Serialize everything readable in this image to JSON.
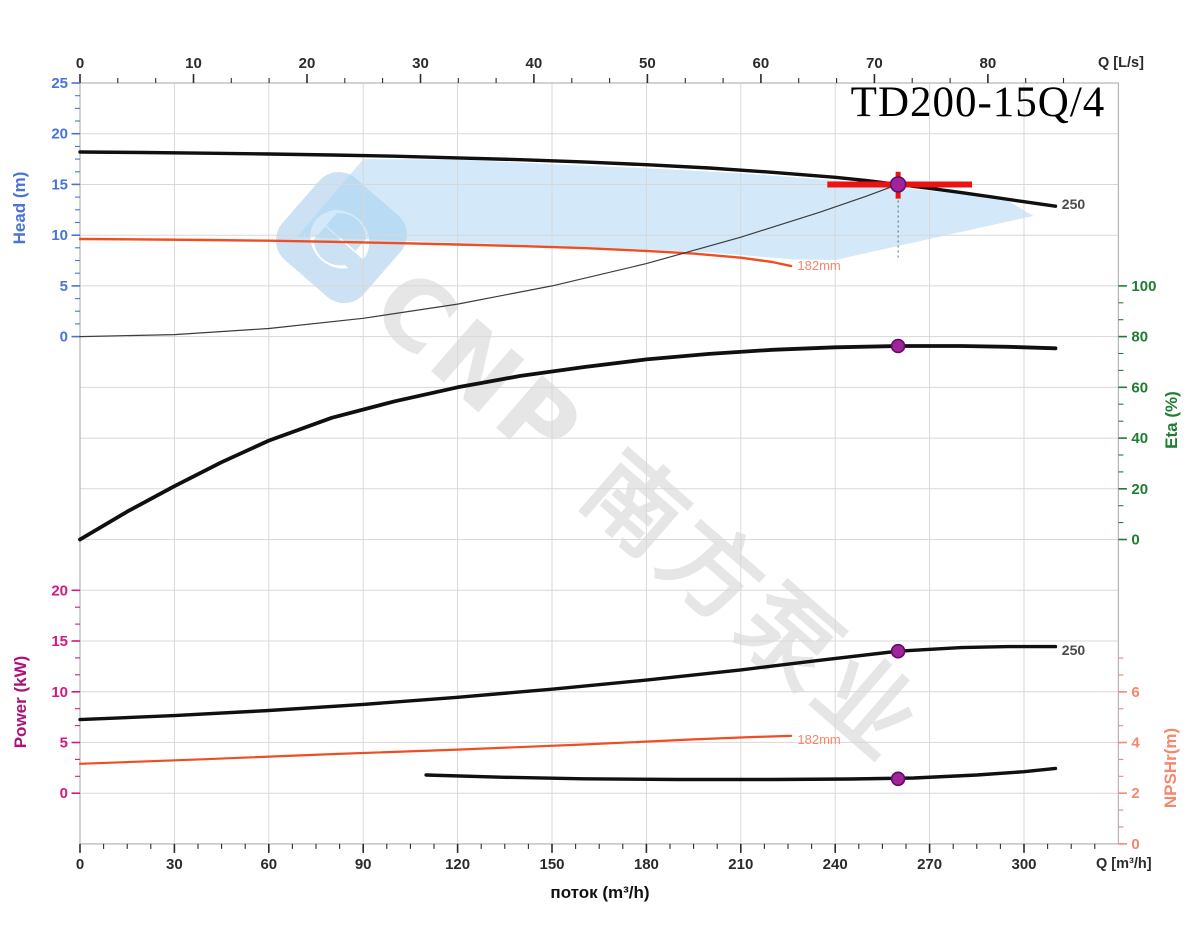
{
  "title": "TD200-15Q/4",
  "watermark": {
    "logo": "℮",
    "text": "CNP 南方泵业"
  },
  "labels": {
    "q_ls": "Q [L/s]",
    "q_m3h": "Q [m³/h]",
    "flow_xlabel": "поток (m³/h)",
    "head_axis": "Head (m)",
    "power_axis": "Power (kW)",
    "eta_axis": "Eta (%)",
    "npshr_axis": "NPSHr(m)"
  },
  "colors": {
    "head_axis": "#4a72d9",
    "eta_axis": "#1e7d32",
    "power_axis": "#d6187f",
    "npshr_axis": "#f4876c",
    "flow_axis": "#2b2b2b",
    "curve_black": "#101010",
    "curve_orange": "#ef4e23",
    "system_curve": "#3c3c3c",
    "grid": "#d8d8d8",
    "spine": "#b5b5b5",
    "region_fill": "rgba(168,212,244,0.5)",
    "duty_marker_red": "#ee1111",
    "dot_purple": "#a2249a",
    "dot_edge": "#5e0f62",
    "label_gray": "#4a4a4a"
  },
  "chart_data": {
    "type": "line",
    "title": "TD200-15Q/4",
    "grid": "on",
    "axes": {
      "flow_m3h": {
        "title": "Q [m³/h]",
        "range": [
          0,
          330
        ],
        "majors": [
          0,
          30,
          60,
          90,
          120,
          150,
          180,
          210,
          240,
          270,
          300
        ],
        "minor_div": 4,
        "color": "#2b2b2b",
        "side": "bottom"
      },
      "flow_ls": {
        "title": "Q [L/s]",
        "range": [
          0,
          91.5
        ],
        "majors": [
          0,
          10,
          20,
          30,
          40,
          50,
          60,
          70,
          80
        ],
        "minor_div": 3,
        "color": "#2b2b2b",
        "side": "top"
      },
      "head": {
        "title": "Head (m)",
        "range": [
          0,
          25
        ],
        "majors": [
          0,
          5,
          10,
          15,
          20,
          25
        ],
        "minor_div": 4,
        "color": "#4a72d9",
        "side": "left"
      },
      "eta": {
        "title": "Eta (%)",
        "range": [
          0,
          100
        ],
        "majors": [
          0,
          20,
          40,
          60,
          80,
          100
        ],
        "minor_div": 3,
        "color": "#1e7d32",
        "side": "right"
      },
      "power": {
        "title": "Power (kW)",
        "range": [
          0,
          20
        ],
        "majors": [
          0,
          5,
          10,
          15,
          20
        ],
        "minor_div": 3,
        "color": "#d6187f",
        "side": "left"
      },
      "npshr": {
        "title": "NPSHr(m)",
        "range": [
          0,
          8
        ],
        "majors": [
          0,
          2,
          4,
          6
        ],
        "minor_div": 3,
        "color": "#f4876c",
        "side": "right"
      }
    },
    "series": [
      {
        "name": "head-250",
        "xaxis": "flow_m3h",
        "yaxis": "head",
        "color": "#101010",
        "width": 3.4,
        "points": [
          [
            0,
            18.2
          ],
          [
            20,
            18.15
          ],
          [
            40,
            18.08
          ],
          [
            60,
            18.0
          ],
          [
            80,
            17.9
          ],
          [
            100,
            17.78
          ],
          [
            120,
            17.62
          ],
          [
            140,
            17.44
          ],
          [
            160,
            17.22
          ],
          [
            180,
            16.95
          ],
          [
            200,
            16.62
          ],
          [
            220,
            16.2
          ],
          [
            240,
            15.7
          ],
          [
            250,
            15.38
          ],
          [
            260,
            15.0
          ],
          [
            270,
            14.62
          ],
          [
            280,
            14.2
          ],
          [
            290,
            13.75
          ],
          [
            300,
            13.3
          ],
          [
            310,
            12.85
          ]
        ]
      },
      {
        "name": "head-182mm",
        "xaxis": "flow_m3h",
        "yaxis": "head",
        "color": "#ef4e23",
        "width": 2.4,
        "points": [
          [
            0,
            9.62
          ],
          [
            20,
            9.58
          ],
          [
            40,
            9.52
          ],
          [
            60,
            9.45
          ],
          [
            80,
            9.35
          ],
          [
            100,
            9.22
          ],
          [
            120,
            9.08
          ],
          [
            140,
            8.92
          ],
          [
            160,
            8.72
          ],
          [
            180,
            8.45
          ],
          [
            195,
            8.18
          ],
          [
            210,
            7.78
          ],
          [
            220,
            7.35
          ],
          [
            226,
            6.95
          ]
        ]
      },
      {
        "name": "system-curve",
        "xaxis": "flow_m3h",
        "yaxis": "head",
        "color": "#3c3c3c",
        "width": 1.2,
        "points": [
          [
            0,
            0
          ],
          [
            30,
            0.2
          ],
          [
            60,
            0.8
          ],
          [
            90,
            1.8
          ],
          [
            120,
            3.2
          ],
          [
            150,
            5.0
          ],
          [
            180,
            7.2
          ],
          [
            210,
            9.8
          ],
          [
            235,
            12.25
          ],
          [
            250,
            13.85
          ],
          [
            260,
            15.0
          ]
        ]
      },
      {
        "name": "eta-250",
        "xaxis": "flow_m3h",
        "yaxis": "eta",
        "color": "#101010",
        "width": 3.8,
        "points": [
          [
            0,
            0
          ],
          [
            15,
            11
          ],
          [
            30,
            21
          ],
          [
            45,
            30.5
          ],
          [
            60,
            39
          ],
          [
            80,
            48
          ],
          [
            100,
            54.5
          ],
          [
            120,
            60
          ],
          [
            140,
            64.5
          ],
          [
            160,
            68
          ],
          [
            180,
            71
          ],
          [
            200,
            73.2
          ],
          [
            220,
            74.8
          ],
          [
            240,
            75.8
          ],
          [
            260,
            76.3
          ],
          [
            280,
            76.3
          ],
          [
            295,
            76.0
          ],
          [
            310,
            75.4
          ]
        ]
      },
      {
        "name": "power-250",
        "xaxis": "flow_m3h",
        "yaxis": "power",
        "color": "#101010",
        "width": 3.4,
        "points": [
          [
            0,
            7.25
          ],
          [
            30,
            7.65
          ],
          [
            60,
            8.15
          ],
          [
            90,
            8.75
          ],
          [
            120,
            9.45
          ],
          [
            150,
            10.25
          ],
          [
            180,
            11.15
          ],
          [
            210,
            12.15
          ],
          [
            235,
            13.1
          ],
          [
            260,
            14.0
          ],
          [
            280,
            14.35
          ],
          [
            295,
            14.45
          ],
          [
            310,
            14.45
          ]
        ]
      },
      {
        "name": "power-182mm",
        "xaxis": "flow_m3h",
        "yaxis": "power",
        "color": "#ef4e23",
        "width": 2.2,
        "points": [
          [
            0,
            2.9
          ],
          [
            40,
            3.35
          ],
          [
            80,
            3.85
          ],
          [
            120,
            4.3
          ],
          [
            160,
            4.8
          ],
          [
            195,
            5.3
          ],
          [
            215,
            5.55
          ],
          [
            226,
            5.65
          ]
        ]
      },
      {
        "name": "npshr-250",
        "xaxis": "flow_m3h",
        "yaxis": "npshr",
        "color": "#101010",
        "width": 3.4,
        "points": [
          [
            110,
            2.72
          ],
          [
            135,
            2.63
          ],
          [
            160,
            2.57
          ],
          [
            190,
            2.54
          ],
          [
            220,
            2.54
          ],
          [
            245,
            2.56
          ],
          [
            265,
            2.6
          ],
          [
            285,
            2.72
          ],
          [
            300,
            2.85
          ],
          [
            310,
            2.98
          ]
        ]
      }
    ],
    "region": {
      "name": "allowed-operating-region",
      "xaxis": "flow_m3h",
      "yaxis": "head",
      "points": [
        [
          69,
          9.85
        ],
        [
          90,
          17.5
        ],
        [
          120,
          17.45
        ],
        [
          150,
          17.0
        ],
        [
          180,
          16.6
        ],
        [
          210,
          16.1
        ],
        [
          240,
          15.4
        ],
        [
          260,
          14.7
        ],
        [
          280,
          14.05
        ],
        [
          295,
          13.35
        ],
        [
          303,
          11.9
        ],
        [
          240,
          7.55
        ],
        [
          226,
          7.62
        ],
        [
          200,
          8.3
        ],
        [
          170,
          8.72
        ],
        [
          140,
          9.05
        ],
        [
          110,
          9.35
        ]
      ]
    },
    "duty_point": {
      "flow_m3h": 260,
      "flow_ls": 72.2,
      "head_m": 15.0,
      "eta_pct": 76,
      "power_kw": 14.0,
      "npshr_m": 2.6,
      "cross_x_extent": [
        237.5,
        283.5
      ],
      "cross_y_extent": [
        13.6,
        16.25
      ]
    },
    "guide_line": {
      "x": 260,
      "yaxis": "head",
      "y_from": 7.8,
      "y_to": 14.4
    },
    "dots": [
      {
        "x": 260,
        "y": 15.0,
        "yaxis": "head",
        "r": 7.5
      },
      {
        "x": 260,
        "y": 76.3,
        "yaxis": "eta",
        "r": 6.5
      },
      {
        "x": 260,
        "y": 14.0,
        "yaxis": "power",
        "r": 6.5
      },
      {
        "x": 260,
        "y": 2.57,
        "yaxis": "npshr",
        "r": 6.5
      }
    ],
    "curve_labels": [
      {
        "text": "250",
        "x": 312,
        "y": 12.6,
        "yaxis": "head",
        "color": "#4a4a4a",
        "size": 14,
        "weight": 700
      },
      {
        "text": "182mm",
        "x": 228,
        "y": 6.55,
        "yaxis": "head",
        "color": "#f4876c",
        "size": 13,
        "weight": 400
      },
      {
        "text": "250",
        "x": 312,
        "y": 13.6,
        "yaxis": "power",
        "color": "#4a4a4a",
        "size": 14,
        "weight": 700
      },
      {
        "text": "182mm",
        "x": 228,
        "y": 4.85,
        "yaxis": "power",
        "color": "#f4876c",
        "size": 13,
        "weight": 400
      }
    ]
  }
}
